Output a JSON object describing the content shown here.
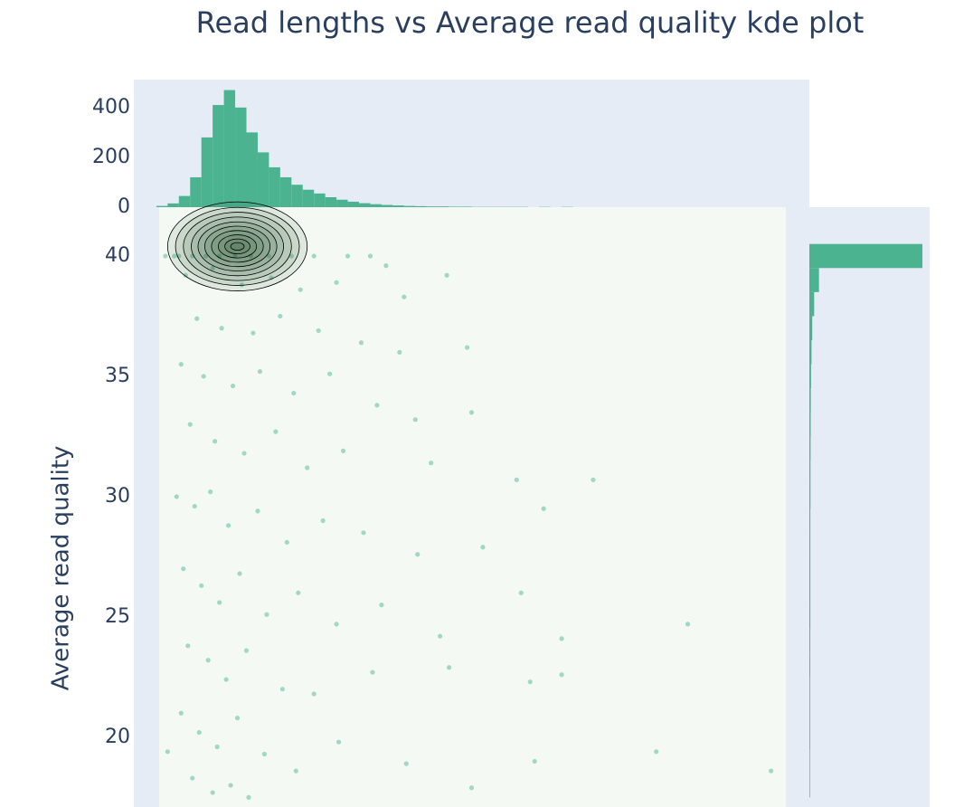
{
  "chart_data": [
    {
      "type": "scatter",
      "title": "Read lengths vs Average read quality kde plot",
      "ylabel": "Average read quality",
      "color": "#3cb08a",
      "contour_color": "#1e4d2b",
      "xlim": [
        0,
        30000
      ],
      "ylim": [
        17.1,
        42.03
      ],
      "yticks": [
        20,
        25,
        30,
        35,
        40
      ],
      "x": [
        2000,
        2600,
        3200,
        3800,
        4500,
        5200,
        6000,
        7000,
        8000,
        9500,
        10500,
        2300,
        3500,
        4800,
        6100,
        7400,
        9000,
        11200,
        12000,
        13900,
        2800,
        3900,
        5300,
        6500,
        8200,
        10100,
        11800,
        14800,
        2100,
        3100,
        4400,
        5600,
        7100,
        8700,
        10800,
        12500,
        15000,
        2500,
        3600,
        4900,
        6300,
        7700,
        9300,
        13200,
        17000,
        20400,
        1900,
        2700,
        3400,
        4200,
        5500,
        6800,
        8400,
        10200,
        12600,
        15500,
        18200,
        2200,
        3000,
        3800,
        4700,
        5900,
        7300,
        9000,
        11000,
        13600,
        17200,
        24600,
        2400,
        3300,
        4100,
        5000,
        6600,
        8000,
        10600,
        14000,
        17600,
        19000,
        19000,
        2100,
        2900,
        3700,
        4600,
        5800,
        7200,
        9100,
        12100,
        15000,
        17800,
        23200,
        28300,
        2600,
        3500,
        4300,
        5100,
        1500,
        1800,
        1400
      ],
      "y": [
        40,
        40,
        40,
        40,
        40,
        40,
        40,
        40,
        40,
        40,
        40,
        39.2,
        39.5,
        38.8,
        39.1,
        38.6,
        38.9,
        39.6,
        38.3,
        39.2,
        37.4,
        37.0,
        36.8,
        37.5,
        36.9,
        36.4,
        36.0,
        36.2,
        35.5,
        35.0,
        34.6,
        35.2,
        34.3,
        35.1,
        33.8,
        33.2,
        33.5,
        33.0,
        32.3,
        31.8,
        32.7,
        31.2,
        31.9,
        31.4,
        30.7,
        30.7,
        30.0,
        29.6,
        30.2,
        28.8,
        29.4,
        28.1,
        29.0,
        28.5,
        27.6,
        27.9,
        29.5,
        27.0,
        26.3,
        25.6,
        26.8,
        25.1,
        26.0,
        24.7,
        25.5,
        24.2,
        26.0,
        24.7,
        23.8,
        23.2,
        22.4,
        23.6,
        22.0,
        21.8,
        22.7,
        22.9,
        22.3,
        22.6,
        24.1,
        21.0,
        20.2,
        19.6,
        20.8,
        19.3,
        18.6,
        19.8,
        18.9,
        17.9,
        19.0,
        19.4,
        18.6,
        18.3,
        17.7,
        18.0,
        17.5,
        19.4,
        40,
        40
      ],
      "contours": {
        "cx": 4600,
        "cy": 40.4,
        "rx": [
          3100,
          2750,
          2400,
          2050,
          1750,
          1450,
          1150,
          850,
          560,
          300
        ],
        "ry": [
          1.85,
          1.62,
          1.42,
          1.22,
          1.02,
          0.84,
          0.66,
          0.48,
          0.31,
          0.16
        ]
      }
    },
    {
      "type": "histogram",
      "color": "#4bb38f",
      "ylim": [
        0,
        512
      ],
      "yticks": [
        0,
        200,
        400
      ],
      "bins": [
        1000,
        1500,
        2000,
        2500,
        3000,
        3500,
        4000,
        4500,
        5000,
        5500,
        6000,
        6500,
        7000,
        7500,
        8000,
        8500,
        9000,
        9500,
        10000,
        10500,
        11000,
        11500,
        12000,
        12500,
        13000,
        13500,
        14000,
        14500,
        15000,
        15500,
        16000,
        16500,
        17000,
        17500,
        18000,
        18500,
        19000,
        19500,
        20000
      ],
      "values": [
        5,
        15,
        45,
        120,
        280,
        410,
        470,
        400,
        300,
        220,
        160,
        120,
        90,
        70,
        55,
        40,
        30,
        22,
        16,
        12,
        9,
        7,
        5,
        4,
        3,
        3,
        2,
        2,
        1,
        1,
        1,
        1,
        1,
        0,
        1,
        0,
        1,
        0
      ]
    },
    {
      "type": "histogram",
      "orientation": "h",
      "color": "#4bb38f",
      "xlim": [
        0,
        5000
      ],
      "bins": [
        17.5,
        18.5,
        19.5,
        20.5,
        21.5,
        22.5,
        23.5,
        24.5,
        25.5,
        26.5,
        27.5,
        28.5,
        29.5,
        30.5,
        31.5,
        32.5,
        33.5,
        34.5,
        35.5,
        36.5,
        37.5,
        38.5,
        39.5,
        40.5,
        41.5
      ],
      "values": [
        25,
        25,
        30,
        30,
        30,
        35,
        35,
        40,
        40,
        40,
        40,
        40,
        45,
        45,
        50,
        55,
        60,
        70,
        90,
        120,
        200,
        400,
        4700,
        0
      ]
    }
  ]
}
